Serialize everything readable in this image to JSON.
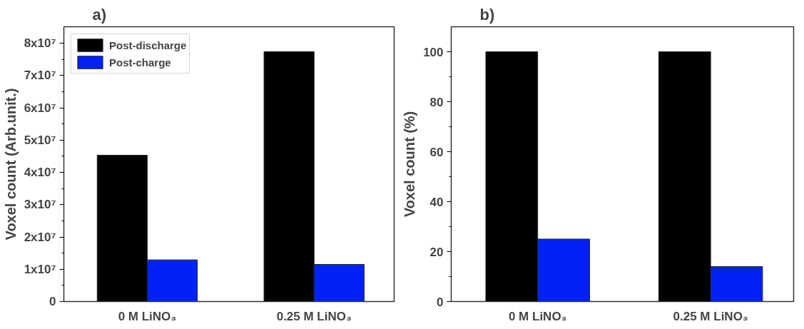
{
  "chart_data": [
    {
      "type": "bar",
      "title": "a)",
      "ylabel": "Voxel count (Arb.unit.)",
      "categories": [
        "0 M LiNO₃",
        "0.25 M LiNO₃"
      ],
      "series": [
        {
          "name": "Post-discharge",
          "color": "#000000",
          "values": [
            45300000,
            77400000
          ]
        },
        {
          "name": "Post-charge",
          "color": "#0022f5",
          "values": [
            12900000,
            11500000
          ]
        }
      ],
      "ylim": [
        0,
        85100000
      ],
      "yticks": [
        0,
        {
          "value": 5000000,
          "label": null
        },
        {
          "value": 10000000,
          "label": "1x10⁷"
        },
        {
          "value": 15000000,
          "label": null
        },
        {
          "value": 20000000,
          "label": "2x10⁷"
        },
        {
          "value": 25000000,
          "label": null
        },
        {
          "value": 30000000,
          "label": "3x10⁷"
        },
        {
          "value": 35000000,
          "label": null
        },
        {
          "value": 40000000,
          "label": "4x10⁷"
        },
        {
          "value": 45000000,
          "label": null
        },
        {
          "value": 50000000,
          "label": "5x10⁷"
        },
        {
          "value": 55000000,
          "label": null
        },
        {
          "value": 60000000,
          "label": "6x10⁷"
        },
        {
          "value": 65000000,
          "label": null
        },
        {
          "value": 70000000,
          "label": "7x10⁷"
        },
        {
          "value": 75000000,
          "label": null
        },
        {
          "value": 80000000,
          "label": "8x10⁷"
        }
      ],
      "legend": "top left",
      "grid": false
    },
    {
      "type": "bar",
      "title": "b)",
      "ylabel": "Voxel count (%)",
      "categories": [
        "0 M LiNO₃",
        "0.25 M LiNO₃"
      ],
      "series": [
        {
          "color": "#000000",
          "values": [
            100,
            100
          ]
        },
        {
          "color": "#0022f5",
          "values": [
            25,
            14
          ]
        }
      ],
      "ylim": [
        0,
        110
      ],
      "yticks": [
        0,
        {
          "value": 10,
          "label": null
        },
        20,
        {
          "value": 30,
          "label": null
        },
        40,
        {
          "value": 50,
          "label": null
        },
        60,
        {
          "value": 70,
          "label": null
        },
        80,
        {
          "value": 90,
          "label": null
        },
        100
      ],
      "legend": false,
      "grid": false
    }
  ]
}
